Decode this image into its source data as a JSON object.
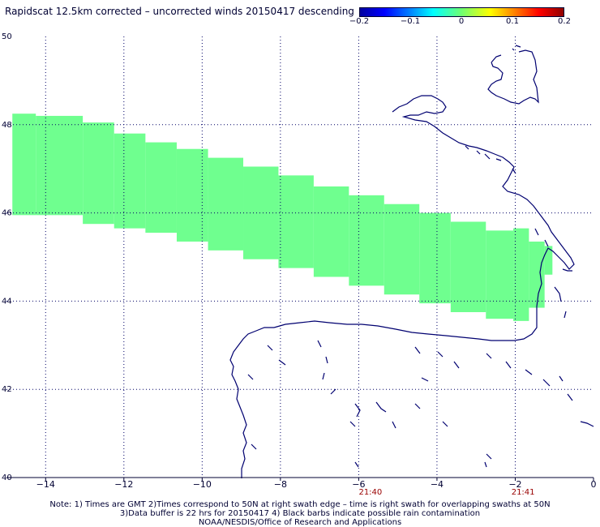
{
  "title": "Rapidscat 12.5km corrected – uncorrected winds 20150417 descending",
  "colorbar": {
    "ticks": [
      "−0.2",
      "−0.1",
      "0",
      "0.1",
      "0.2"
    ],
    "range": [
      -0.2,
      0.2
    ],
    "colors": [
      "#0000a0",
      "#0000ff",
      "#00ffff",
      "#70ff70",
      "#ffff00",
      "#ff0000",
      "#900000"
    ]
  },
  "colors": {
    "swath": "#6fff8f",
    "coast": "#000070",
    "grid": "#000066",
    "time_label": "#990000",
    "text": "#000033"
  },
  "chart_data": {
    "type": "map",
    "xlim": [
      -15,
      0
    ],
    "ylim": [
      40,
      50
    ],
    "x_ticks": [
      -14,
      -12,
      -10,
      -8,
      -6,
      -4,
      -2,
      0
    ],
    "x_tick_labels": [
      "−14",
      "−12",
      "−10",
      "−8",
      "−6",
      "−4",
      "−2",
      "0"
    ],
    "y_ticks": [
      40,
      42,
      44,
      46,
      48,
      50
    ],
    "y_tick_labels": [
      "40",
      "42",
      "44",
      "46",
      "48",
      "50"
    ],
    "grid": "dotted",
    "time_labels": [
      {
        "lon": -5.7,
        "text": "21:40"
      },
      {
        "lon": -1.8,
        "text": "21:41"
      }
    ],
    "swath_value": 0.0,
    "swath_segments": [
      {
        "lon": [
          -14.85,
          -14.25
        ],
        "lat": [
          45.95,
          48.25
        ]
      },
      {
        "lon": [
          -14.25,
          -13.05
        ],
        "lat": [
          45.95,
          48.2
        ]
      },
      {
        "lon": [
          -13.05,
          -12.25
        ],
        "lat": [
          45.75,
          48.05
        ]
      },
      {
        "lon": [
          -12.25,
          -11.45
        ],
        "lat": [
          45.65,
          47.8
        ]
      },
      {
        "lon": [
          -11.45,
          -10.65
        ],
        "lat": [
          45.55,
          47.6
        ]
      },
      {
        "lon": [
          -10.65,
          -9.85
        ],
        "lat": [
          45.35,
          47.45
        ]
      },
      {
        "lon": [
          -9.85,
          -8.95
        ],
        "lat": [
          45.15,
          47.25
        ]
      },
      {
        "lon": [
          -8.95,
          -8.05
        ],
        "lat": [
          44.95,
          47.05
        ]
      },
      {
        "lon": [
          -8.05,
          -7.15
        ],
        "lat": [
          44.75,
          46.85
        ]
      },
      {
        "lon": [
          -7.15,
          -6.25
        ],
        "lat": [
          44.55,
          46.6
        ]
      },
      {
        "lon": [
          -6.25,
          -5.35
        ],
        "lat": [
          44.35,
          46.4
        ]
      },
      {
        "lon": [
          -5.35,
          -4.45
        ],
        "lat": [
          44.15,
          46.2
        ]
      },
      {
        "lon": [
          -4.45,
          -3.65
        ],
        "lat": [
          43.95,
          46.0
        ]
      },
      {
        "lon": [
          -3.65,
          -2.75
        ],
        "lat": [
          43.75,
          45.8
        ]
      },
      {
        "lon": [
          -2.75,
          -2.05
        ],
        "lat": [
          43.6,
          45.6
        ]
      },
      {
        "lon": [
          -2.05,
          -1.65
        ],
        "lat": [
          43.55,
          45.65
        ]
      },
      {
        "lon": [
          -1.65,
          -1.25
        ],
        "lat": [
          43.85,
          45.35
        ]
      },
      {
        "lon": [
          -1.25,
          -1.05
        ],
        "lat": [
          44.6,
          45.25
        ]
      }
    ]
  },
  "notes": [
    "Note: 1) Times are GMT 2)Times correspond to 50N at right swath edge – time is right swath for overlapping swaths at 50N",
    "3)Data buffer is 22 hrs for 20150417 4) Black barbs indicate possible rain contamination",
    "NOAA/NESDIS/Office of Research and Applications"
  ]
}
